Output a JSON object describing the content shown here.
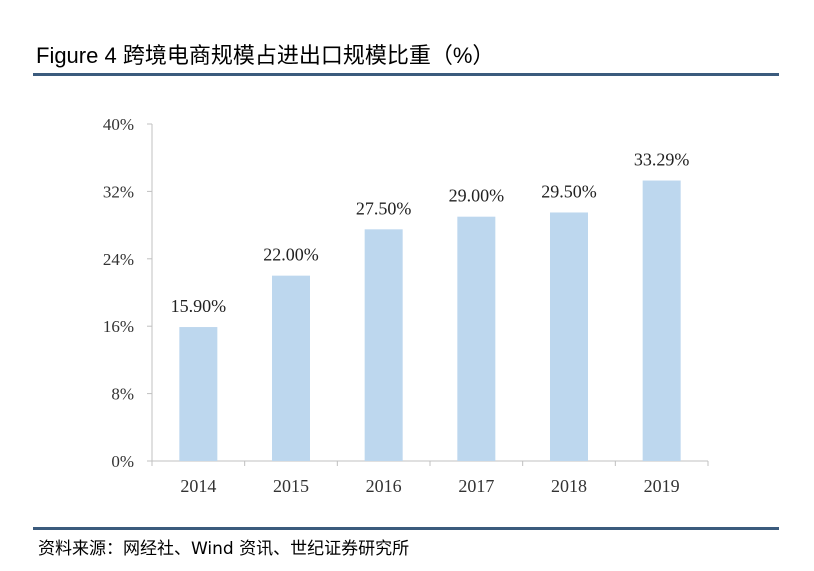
{
  "header": {
    "title": "Figure 4 跨境电商规模占进出口规模比重（%）"
  },
  "footer": {
    "source": "资料来源：网经社、Wind 资讯、世纪证券研究所"
  },
  "colors": {
    "bar": "#bdd7ee",
    "rule": "#3b5b7d",
    "axis": "#c0c0c0"
  },
  "chart_data": {
    "type": "bar",
    "title": "",
    "xlabel": "",
    "ylabel": "",
    "categories": [
      "2014",
      "2015",
      "2016",
      "2017",
      "2018",
      "2019"
    ],
    "values": [
      15.9,
      22.0,
      27.5,
      29.0,
      29.5,
      33.29
    ],
    "data_labels": [
      "15.90%",
      "22.00%",
      "27.50%",
      "29.00%",
      "29.50%",
      "33.29%"
    ],
    "ylim": [
      0,
      40
    ],
    "yticks": [
      0,
      8,
      16,
      24,
      32,
      40
    ],
    "ytick_labels": [
      "0%",
      "8%",
      "16%",
      "24%",
      "32%",
      "40%"
    ],
    "grid": false,
    "legend": "none"
  }
}
